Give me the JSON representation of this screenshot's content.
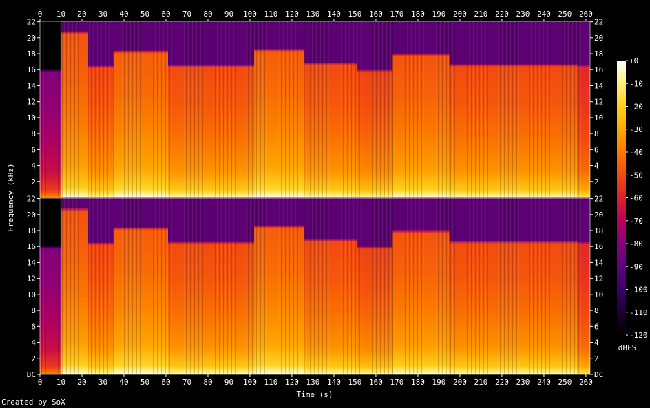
{
  "chart_data": {
    "type": "heatmap",
    "subtype": "spectrogram",
    "title": "",
    "xlabel": "Time (s)",
    "ylabel": "Frequency (kHz)",
    "colorbar_label": "dBFS",
    "xlim": [
      0,
      262
    ],
    "x_ticks": [
      0,
      10,
      20,
      30,
      40,
      50,
      60,
      70,
      80,
      90,
      100,
      110,
      120,
      130,
      140,
      150,
      160,
      170,
      180,
      190,
      200,
      210,
      220,
      230,
      240,
      250,
      260
    ],
    "channels": [
      {
        "ylim_khz": [
          0,
          22.05
        ],
        "y_ticks": [
          2,
          4,
          6,
          8,
          10,
          12,
          14,
          16,
          18,
          20,
          22
        ],
        "y_tick_labels": [
          "2",
          "4",
          "6",
          "8",
          "10",
          "12",
          "14",
          "16",
          "18",
          "20",
          "22"
        ]
      },
      {
        "ylim_khz": [
          0,
          22.05
        ],
        "y_ticks": [
          0,
          2,
          4,
          6,
          8,
          10,
          12,
          14,
          16,
          18,
          20,
          22
        ],
        "y_tick_labels": [
          "DC",
          "2",
          "4",
          "6",
          "8",
          "10",
          "12",
          "14",
          "16",
          "18",
          "20",
          "22"
        ]
      }
    ],
    "colorbar": {
      "range_dbfs": [
        -120,
        0
      ],
      "ticks": [
        0,
        -10,
        -20,
        -30,
        -40,
        -50,
        -60,
        -70,
        -80,
        -90,
        -100,
        -110,
        -120
      ],
      "tick_labels": [
        "+0",
        "-10",
        "-20",
        "-30",
        "-40",
        "-50",
        "-60",
        "-70",
        "-80",
        "-90",
        "-100",
        "-110",
        "-120"
      ],
      "colors": [
        "#000000",
        "#1a0033",
        "#3a0066",
        "#5e0080",
        "#88007a",
        "#b8005a",
        "#e0202a",
        "#f24a10",
        "#fb7a00",
        "#ffaa00",
        "#ffd21a",
        "#fff07a",
        "#ffffff"
      ]
    },
    "segments": {
      "boundaries_s": [
        0,
        10,
        23,
        35,
        61,
        102,
        126,
        151,
        168,
        195,
        256,
        262
      ],
      "cutoff_khz": [
        16,
        20.8,
        16.5,
        18.4,
        16.6,
        18.6,
        16.9,
        16.0,
        18.0,
        16.7,
        16.6
      ],
      "level_dbfs": [
        -78,
        -45,
        -48,
        -43,
        -47,
        -43,
        -47,
        -49,
        -45,
        -47,
        -55
      ]
    },
    "description_bands": "energy strongest below 2 kHz, red body to cutoff, purple noise above"
  },
  "credit_text": "Created by SoX"
}
